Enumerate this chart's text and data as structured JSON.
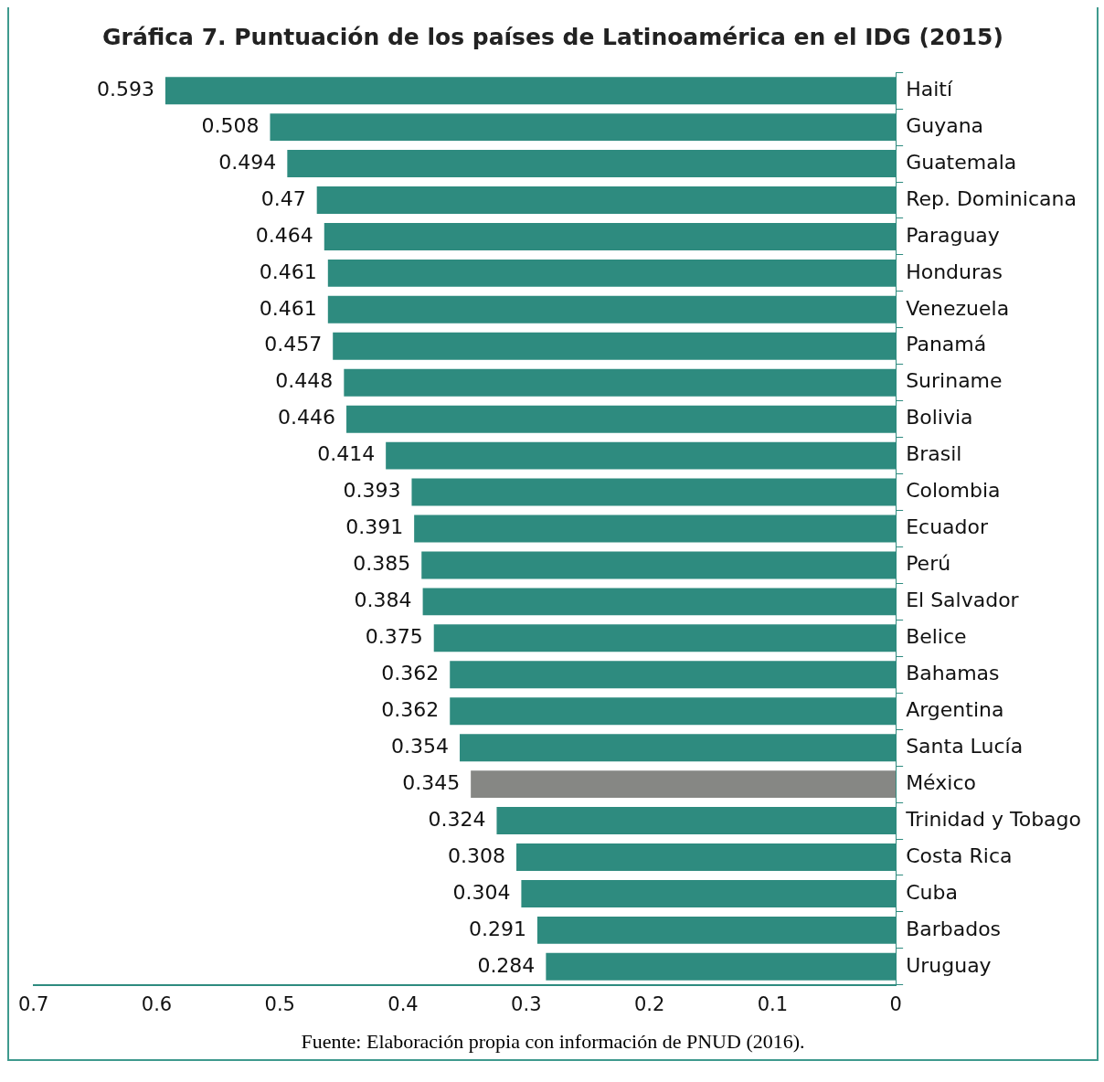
{
  "chart_data": {
    "type": "bar",
    "orientation": "horizontal",
    "title": "Gráfica 7. Puntuación de los países de Latinoamérica en el IDG (2015)",
    "categories": [
      "Haití",
      "Guyana",
      "Guatemala",
      "Rep. Dominicana",
      "Paraguay",
      "Honduras",
      "Venezuela",
      "Panamá",
      "Suriname",
      "Bolivia",
      "Brasil",
      "Colombia",
      "Ecuador",
      "Perú",
      "El Salvador",
      "Belice",
      "Bahamas",
      "Argentina",
      "Santa Lucía",
      "México",
      "Trinidad y Tobago",
      "Costa Rica",
      "Cuba",
      "Barbados",
      "Uruguay"
    ],
    "values": [
      0.593,
      0.508,
      0.494,
      0.47,
      0.464,
      0.461,
      0.461,
      0.457,
      0.448,
      0.446,
      0.414,
      0.393,
      0.391,
      0.385,
      0.384,
      0.375,
      0.362,
      0.362,
      0.354,
      0.345,
      0.324,
      0.308,
      0.304,
      0.291,
      0.284
    ],
    "colors": [
      "#2e8b7f",
      "#2e8b7f",
      "#2e8b7f",
      "#2e8b7f",
      "#2e8b7f",
      "#2e8b7f",
      "#2e8b7f",
      "#2e8b7f",
      "#2e8b7f",
      "#2e8b7f",
      "#2e8b7f",
      "#2e8b7f",
      "#2e8b7f",
      "#2e8b7f",
      "#2e8b7f",
      "#2e8b7f",
      "#2e8b7f",
      "#2e8b7f",
      "#2e8b7f",
      "#868784",
      "#2e8b7f",
      "#2e8b7f",
      "#2e8b7f",
      "#2e8b7f",
      "#2e8b7f"
    ],
    "xlim": [
      0.7,
      0
    ],
    "xticks": [
      0.7,
      0.6,
      0.5,
      0.4,
      0.3,
      0.2,
      0.1,
      0
    ],
    "data_labels": true,
    "grid": false,
    "legend": false,
    "annotations": [
      "Fuente: Elaboración propia con información de PNUD (2016)."
    ]
  }
}
